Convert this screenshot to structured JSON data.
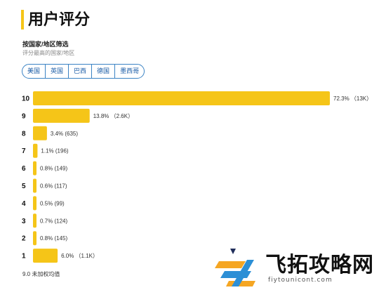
{
  "header": {
    "title": "用户评分"
  },
  "filter": {
    "label": "按国家/地区筛选",
    "sublabel": "评分最高的国家/地区",
    "options": [
      "美国",
      "英国",
      "巴西",
      "德国",
      "墨西哥"
    ]
  },
  "footnote": "9.0 未加权均值",
  "watermark": {
    "text": "飞拓攻略网",
    "url": "fiytounicont.com"
  },
  "colors": {
    "bar": "#f5c518",
    "chip_border": "#3b83c4",
    "title_bar": "#f5c518"
  },
  "chart_data": {
    "type": "bar",
    "orientation": "horizontal",
    "categories": [
      "10",
      "9",
      "8",
      "7",
      "6",
      "5",
      "4",
      "3",
      "2",
      "1"
    ],
    "values": [
      72.3,
      13.8,
      3.4,
      1.1,
      0.8,
      0.6,
      0.5,
      0.7,
      0.8,
      6.0
    ],
    "value_labels": [
      "72.3% （13K）",
      "13.8% （2.6K）",
      "3.4% (635)",
      "1.1% (196)",
      "0.8% (149)",
      "0.6% (117)",
      "0.5% (99)",
      "0.7% (124)",
      "0.8% (145)",
      "6.0% （1.1K）"
    ],
    "title": "用户评分",
    "xlabel": "",
    "ylabel": "",
    "xlim": [
      0,
      72.3
    ],
    "grid": false
  }
}
